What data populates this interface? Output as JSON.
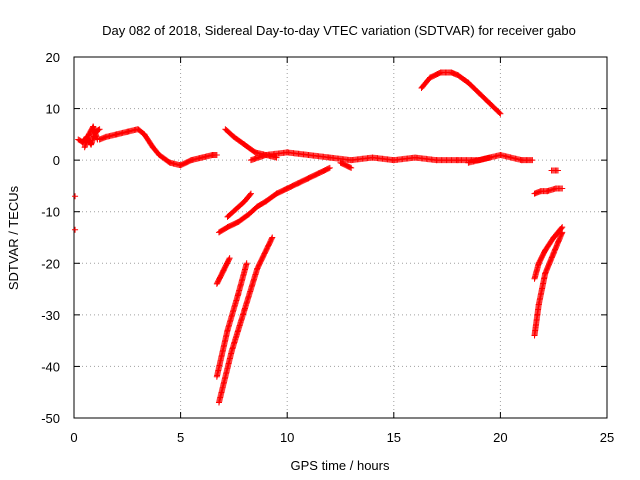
{
  "chart_data": {
    "type": "scatter",
    "title": "Day 082 of 2018, Sidereal Day-to-day VTEC variation (SDTVAR) for receiver gabo",
    "xlabel": "GPS time / hours",
    "ylabel": "SDTVAR / TECUs",
    "xlim": [
      0,
      25
    ],
    "ylim": [
      -50,
      20
    ],
    "xticks": [
      0,
      5,
      10,
      15,
      20,
      25
    ],
    "yticks": [
      -50,
      -40,
      -30,
      -20,
      -10,
      0,
      10,
      20
    ],
    "grid": true,
    "legend": "none",
    "series_color": "#ff0000",
    "series": [
      {
        "x": [
          0.05
        ],
        "y": [
          -7
        ]
      },
      {
        "x": [
          0.05
        ],
        "y": [
          -13.5
        ]
      },
      {
        "x": [
          0.2,
          0.4,
          0.6,
          0.8,
          1.0,
          1.2
        ],
        "y": [
          4,
          3.5,
          4.5,
          3.0,
          5.5,
          6.0
        ]
      },
      {
        "x": [
          0.5,
          0.7,
          0.9,
          1.1
        ],
        "y": [
          2.5,
          5.0,
          6.5,
          4.0
        ]
      },
      {
        "x": [
          1.2,
          1.5,
          2.0,
          2.5,
          3.0,
          3.3,
          3.7,
          4.0,
          4.5,
          5.0,
          5.5,
          6.0,
          6.5,
          6.7
        ],
        "y": [
          4,
          4.5,
          5,
          5.5,
          6,
          5,
          2.5,
          1,
          -0.5,
          -1,
          0,
          0.5,
          1,
          1
        ]
      },
      {
        "x": [
          7.1,
          7.5,
          8.0,
          8.5,
          9.0,
          9.5
        ],
        "y": [
          6,
          4.5,
          3,
          1.5,
          1,
          0.5
        ]
      },
      {
        "x": [
          8.3,
          9.0,
          10.0,
          11.0,
          12.0,
          13.0,
          14.0,
          15.0,
          16.0,
          17.0,
          18.0,
          19.0,
          20.0,
          21.0,
          21.5
        ],
        "y": [
          0,
          1,
          1.5,
          1,
          0.5,
          0,
          0.5,
          0,
          0.5,
          0,
          0,
          0,
          1,
          0,
          0
        ]
      },
      {
        "x": [
          12.5,
          13.0
        ],
        "y": [
          -0.5,
          -1.5
        ]
      },
      {
        "x": [
          18.5,
          19.5
        ],
        "y": [
          -0.5,
          0.5
        ]
      },
      {
        "x": [
          16.3,
          16.7,
          17.2,
          17.7,
          18.0,
          18.5,
          19.0,
          19.5,
          20.0
        ],
        "y": [
          14,
          16,
          17,
          17,
          16.5,
          15,
          13,
          11,
          9
        ]
      },
      {
        "x": [
          6.8,
          7.2,
          7.7,
          8.2,
          8.6,
          9.0,
          9.5,
          10.0,
          10.5,
          11.0,
          11.5,
          12.0
        ],
        "y": [
          -14,
          -13,
          -12,
          -10.5,
          -9,
          -8,
          -6.5,
          -5.5,
          -4.5,
          -3.5,
          -2.5,
          -1.5
        ]
      },
      {
        "x": [
          7.2,
          7.6,
          8.0,
          8.3
        ],
        "y": [
          -11,
          -9.5,
          -8,
          -6.5
        ]
      },
      {
        "x": [
          6.7,
          7.0,
          7.3
        ],
        "y": [
          -24,
          -21.5,
          -19
        ]
      },
      {
        "x": [
          6.7,
          7.2,
          7.7,
          8.1
        ],
        "y": [
          -42,
          -33,
          -26,
          -20
        ]
      },
      {
        "x": [
          6.8,
          7.4,
          8.0,
          8.6,
          9.3
        ],
        "y": [
          -47,
          -37,
          -29,
          -21,
          -15
        ]
      },
      {
        "x": [
          21.6,
          21.9,
          22.2,
          22.6,
          22.9
        ],
        "y": [
          -6.5,
          -6,
          -6,
          -5.5,
          -5.5
        ]
      },
      {
        "x": [
          22.4,
          22.7
        ],
        "y": [
          -2,
          -2
        ]
      },
      {
        "x": [
          21.6,
          21.8,
          22.1,
          22.5,
          22.9
        ],
        "y": [
          -23,
          -20,
          -17.5,
          -15,
          -13
        ]
      },
      {
        "x": [
          21.6,
          21.8,
          22.1,
          22.5,
          22.9
        ],
        "y": [
          -34,
          -28,
          -22,
          -18,
          -14
        ]
      }
    ]
  }
}
